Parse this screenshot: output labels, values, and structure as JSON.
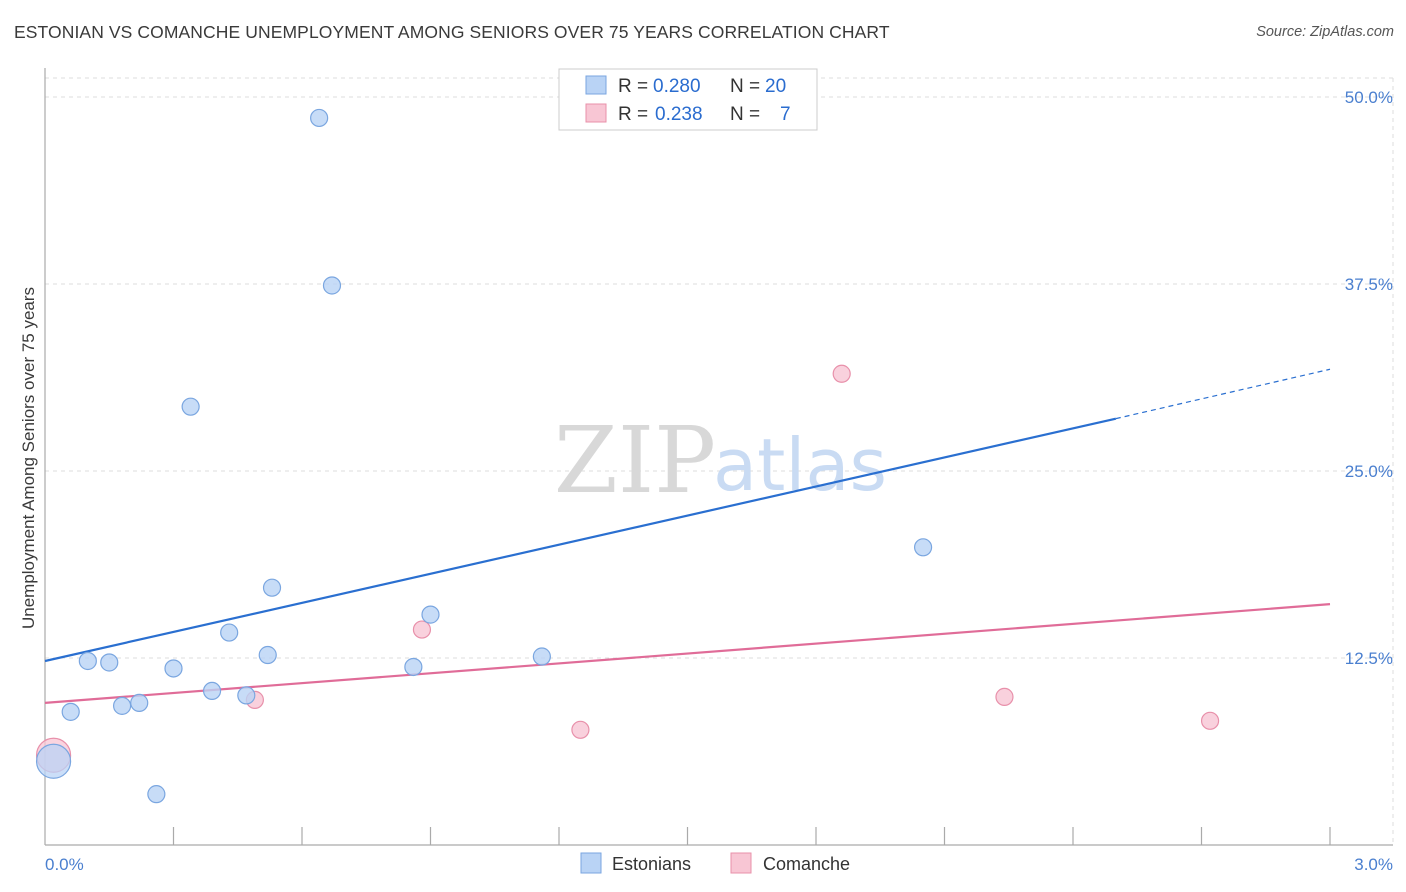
{
  "header": {
    "title": "ESTONIAN VS COMANCHE UNEMPLOYMENT AMONG SENIORS OVER 75 YEARS CORRELATION CHART",
    "source": "Source: ZipAtlas.com"
  },
  "colors": {
    "estonians_fill": "#b9d3f5",
    "estonians_stroke": "#7aa6e0",
    "estonians_line": "#2a6fd0",
    "comanche_fill": "#f8c6d4",
    "comanche_stroke": "#e890aa",
    "comanche_line": "#e06c98",
    "tick_color": "#4a7fcf",
    "grid": "#dddddd"
  },
  "legend": {
    "rows": [
      {
        "r_label": "R =",
        "r_value": "0.280",
        "n_label": "N =",
        "n_value": "20"
      },
      {
        "r_label": "R =",
        "r_value": "0.238",
        "n_label": "N =",
        "n_value": "7"
      }
    ]
  },
  "watermark": {
    "zip": "ZIP",
    "atlas": "atlas"
  },
  "chart_data": {
    "type": "scatter",
    "title": "ESTONIAN VS COMANCHE UNEMPLOYMENT AMONG SENIORS OVER 75 YEARS CORRELATION CHART",
    "xlabel": "",
    "ylabel": "Unemployment Among Seniors over 75 years",
    "xlim": [
      0.0,
      3.0
    ],
    "ylim": [
      0.0,
      50.0
    ],
    "x_tick_labels": [
      "0.0%",
      "3.0%"
    ],
    "y_ticks": [
      12.5,
      25.0,
      37.5,
      50.0
    ],
    "y_tick_labels": [
      "12.5%",
      "25.0%",
      "37.5%",
      "50.0%"
    ],
    "grid": true,
    "legend_position": "bottom",
    "series": [
      {
        "name": "Estonians",
        "color": "#b9d3f5",
        "points": [
          {
            "x": 0.02,
            "y": 5.6,
            "big": true
          },
          {
            "x": 0.06,
            "y": 8.9
          },
          {
            "x": 0.1,
            "y": 12.3
          },
          {
            "x": 0.15,
            "y": 12.2
          },
          {
            "x": 0.18,
            "y": 9.3
          },
          {
            "x": 0.22,
            "y": 9.5
          },
          {
            "x": 0.26,
            "y": 3.4
          },
          {
            "x": 0.3,
            "y": 11.8
          },
          {
            "x": 0.34,
            "y": 29.3
          },
          {
            "x": 0.39,
            "y": 10.3
          },
          {
            "x": 0.43,
            "y": 14.2
          },
          {
            "x": 0.47,
            "y": 10.0
          },
          {
            "x": 0.52,
            "y": 12.7
          },
          {
            "x": 0.53,
            "y": 17.2
          },
          {
            "x": 0.64,
            "y": 48.6
          },
          {
            "x": 0.67,
            "y": 37.4
          },
          {
            "x": 0.86,
            "y": 11.9
          },
          {
            "x": 0.9,
            "y": 15.4
          },
          {
            "x": 1.16,
            "y": 12.6
          },
          {
            "x": 2.05,
            "y": 19.9
          }
        ],
        "trend": {
          "x0": 0.0,
          "y0": 12.3,
          "x1": 2.5,
          "y1": 28.5,
          "dashed_to_x": 3.0,
          "dashed_to_y": 31.8
        }
      },
      {
        "name": "Comanche",
        "color": "#f8c6d4",
        "points": [
          {
            "x": 0.02,
            "y": 6.0,
            "big": true
          },
          {
            "x": 0.49,
            "y": 9.7
          },
          {
            "x": 0.88,
            "y": 14.4
          },
          {
            "x": 1.25,
            "y": 7.7
          },
          {
            "x": 1.86,
            "y": 31.5
          },
          {
            "x": 2.24,
            "y": 9.9
          },
          {
            "x": 2.72,
            "y": 8.3
          }
        ],
        "trend": {
          "x0": 0.0,
          "y0": 9.5,
          "x1": 3.0,
          "y1": 16.1
        }
      }
    ]
  }
}
